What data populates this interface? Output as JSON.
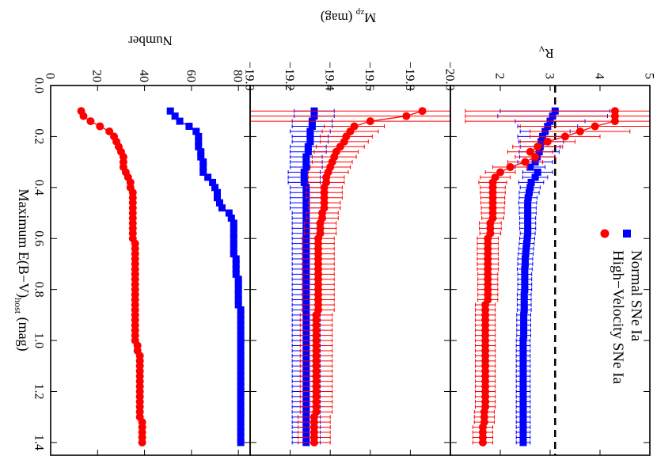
{
  "colors": {
    "normal": "#0000ff",
    "hv": "#ff0000",
    "axis": "#000000"
  },
  "chart_data": [
    {
      "panel": "number",
      "type": "scatter",
      "title": "",
      "xlabel": "Maximum E(B−V)",
      "xlabel_sub": "host",
      "xlabel_unit": " (mag)",
      "ylabel": "Number",
      "xlim": [
        0.0,
        1.45
      ],
      "ylim": [
        0,
        85
      ],
      "x_ticks": [
        "0.0",
        "0.2",
        "0.4",
        "0.6",
        "0.8",
        "1.0",
        "1.2",
        "1.4"
      ],
      "y_ticks": [
        "0",
        "20",
        "40",
        "60",
        "80"
      ],
      "x": [
        0.1,
        0.12,
        0.14,
        0.16,
        0.18,
        0.2,
        0.22,
        0.24,
        0.26,
        0.28,
        0.3,
        0.32,
        0.34,
        0.36,
        0.38,
        0.4,
        0.42,
        0.44,
        0.46,
        0.48,
        0.5,
        0.52,
        0.54,
        0.56,
        0.58,
        0.6,
        0.62,
        0.64,
        0.66,
        0.68,
        0.7,
        0.72,
        0.74,
        0.76,
        0.78,
        0.8,
        0.82,
        0.84,
        0.86,
        0.88,
        0.9,
        0.92,
        0.94,
        0.96,
        0.98,
        1.0,
        1.02,
        1.04,
        1.06,
        1.08,
        1.1,
        1.12,
        1.14,
        1.16,
        1.18,
        1.2,
        1.22,
        1.24,
        1.26,
        1.28,
        1.3,
        1.32,
        1.34,
        1.36,
        1.38,
        1.4
      ],
      "series": [
        {
          "name": "Normal SNe Ia",
          "marker": "square",
          "values": [
            51,
            53,
            55,
            59,
            62,
            63,
            63,
            63,
            64,
            64,
            65,
            65,
            65,
            67,
            69,
            70,
            71,
            71,
            72,
            73,
            76,
            77,
            78,
            78,
            78,
            78,
            78,
            78,
            78,
            79,
            79,
            79,
            79,
            80,
            80,
            80,
            80,
            80,
            80,
            81,
            81,
            81,
            81,
            81,
            81,
            81,
            81,
            81,
            81,
            81,
            81,
            81,
            81,
            81,
            81,
            81,
            81,
            81,
            81,
            81,
            81,
            81,
            81,
            81,
            81,
            81
          ]
        },
        {
          "name": "High−Velocity SNe Ia",
          "marker": "circle",
          "values": [
            13,
            14,
            17,
            21,
            25,
            27,
            28,
            29,
            30,
            31,
            31,
            31,
            32,
            33,
            34,
            34,
            35,
            35,
            35,
            35,
            35,
            35,
            35,
            35,
            35,
            35,
            36,
            36,
            36,
            36,
            36,
            36,
            36,
            36,
            36,
            36,
            36,
            36,
            36,
            36,
            36,
            36,
            36,
            36,
            36,
            36,
            37,
            37,
            38,
            38,
            38,
            38,
            38,
            38,
            38,
            38,
            38,
            38,
            38,
            38,
            38,
            39,
            39,
            39,
            39,
            39
          ]
        }
      ]
    },
    {
      "panel": "mzp",
      "type": "scatter",
      "title": "",
      "xlabel": "",
      "ylabel": "M",
      "ylabel_sub": "zp",
      "ylabel_unit": " (mag)",
      "xlim": [
        0.0,
        1.45
      ],
      "ylim": [
        -19.0,
        -20.0
      ],
      "y_ticks": [
        "−19.0",
        "−19.2",
        "−19.4",
        "−19.6",
        "−19.8",
        "−20.0"
      ],
      "x": [
        0.1,
        0.12,
        0.14,
        0.16,
        0.18,
        0.2,
        0.22,
        0.24,
        0.26,
        0.28,
        0.3,
        0.32,
        0.34,
        0.36,
        0.38,
        0.4,
        0.42,
        0.44,
        0.46,
        0.48,
        0.5,
        0.52,
        0.54,
        0.56,
        0.58,
        0.6,
        0.62,
        0.64,
        0.66,
        0.68,
        0.7,
        0.72,
        0.74,
        0.76,
        0.78,
        0.8,
        0.82,
        0.84,
        0.86,
        0.88,
        0.9,
        0.92,
        0.94,
        0.96,
        0.98,
        1.0,
        1.02,
        1.04,
        1.06,
        1.08,
        1.1,
        1.12,
        1.14,
        1.16,
        1.18,
        1.2,
        1.22,
        1.24,
        1.26,
        1.28,
        1.3,
        1.32,
        1.34,
        1.36,
        1.38,
        1.4
      ],
      "series": [
        {
          "name": "Normal SNe Ia",
          "marker": "square",
          "values": [
            -19.32,
            -19.32,
            -19.31,
            -19.31,
            -19.3,
            -19.3,
            -19.3,
            -19.29,
            -19.29,
            -19.28,
            -19.28,
            -19.28,
            -19.27,
            -19.27,
            -19.27,
            -19.28,
            -19.28,
            -19.28,
            -19.28,
            -19.28,
            -19.28,
            -19.28,
            -19.28,
            -19.28,
            -19.28,
            -19.28,
            -19.28,
            -19.28,
            -19.28,
            -19.28,
            -19.28,
            -19.28,
            -19.28,
            -19.28,
            -19.28,
            -19.28,
            -19.28,
            -19.28,
            -19.28,
            -19.28,
            -19.28,
            -19.28,
            -19.28,
            -19.28,
            -19.28,
            -19.28,
            -19.28,
            -19.28,
            -19.28,
            -19.28,
            -19.28,
            -19.28,
            -19.28,
            -19.28,
            -19.28,
            -19.28,
            -19.28,
            -19.28,
            -19.28,
            -19.28,
            -19.28,
            -19.28,
            -19.28,
            -19.28,
            -19.28,
            -19.28
          ],
          "err": [
            0.1,
            0.1,
            0.1,
            0.1,
            0.1,
            0.09,
            0.09,
            0.09,
            0.09,
            0.08,
            0.08,
            0.08,
            0.08,
            0.08,
            0.08,
            0.08,
            0.08,
            0.08,
            0.08,
            0.08,
            0.07,
            0.07,
            0.07,
            0.07,
            0.07,
            0.07,
            0.07,
            0.07,
            0.07,
            0.07,
            0.07,
            0.07,
            0.07,
            0.07,
            0.07,
            0.07,
            0.07,
            0.07,
            0.07,
            0.07,
            0.07,
            0.07,
            0.07,
            0.07,
            0.07,
            0.07,
            0.07,
            0.07,
            0.07,
            0.07,
            0.07,
            0.07,
            0.07,
            0.07,
            0.07,
            0.07,
            0.07,
            0.07,
            0.07,
            0.07,
            0.07,
            0.07,
            0.07,
            0.07,
            0.07,
            0.07
          ]
        },
        {
          "name": "High−Velocity SNe Ia",
          "marker": "circle",
          "values": [
            -19.86,
            -19.78,
            -19.6,
            -19.52,
            -19.5,
            -19.48,
            -19.47,
            -19.45,
            -19.43,
            -19.42,
            -19.41,
            -19.4,
            -19.39,
            -19.38,
            -19.38,
            -19.37,
            -19.37,
            -19.37,
            -19.37,
            -19.37,
            -19.36,
            -19.36,
            -19.35,
            -19.35,
            -19.35,
            -19.34,
            -19.34,
            -19.34,
            -19.34,
            -19.34,
            -19.34,
            -19.34,
            -19.34,
            -19.34,
            -19.34,
            -19.34,
            -19.34,
            -19.34,
            -19.34,
            -19.34,
            -19.33,
            -19.33,
            -19.33,
            -19.33,
            -19.33,
            -19.33,
            -19.33,
            -19.33,
            -19.33,
            -19.33,
            -19.33,
            -19.33,
            -19.33,
            -19.33,
            -19.33,
            -19.33,
            -19.33,
            -19.33,
            -19.33,
            -19.33,
            -19.32,
            -19.32,
            -19.32,
            -19.32,
            -19.32,
            -19.32
          ],
          "err": [
            1.0,
            1.0,
            1.0,
            0.15,
            0.14,
            0.13,
            0.12,
            0.12,
            0.11,
            0.11,
            0.1,
            0.1,
            0.1,
            0.09,
            0.09,
            0.09,
            0.09,
            0.09,
            0.08,
            0.08,
            0.08,
            0.08,
            0.08,
            0.08,
            0.08,
            0.08,
            0.08,
            0.08,
            0.08,
            0.08,
            0.08,
            0.08,
            0.08,
            0.08,
            0.08,
            0.08,
            0.08,
            0.08,
            0.08,
            0.08,
            0.08,
            0.08,
            0.08,
            0.08,
            0.08,
            0.08,
            0.08,
            0.08,
            0.08,
            0.08,
            0.08,
            0.08,
            0.08,
            0.08,
            0.08,
            0.08,
            0.08,
            0.08,
            0.08,
            0.08,
            0.08,
            0.08,
            0.08,
            0.08,
            0.08,
            0.08
          ]
        }
      ]
    },
    {
      "panel": "rv",
      "type": "scatter",
      "title": "",
      "xlabel": "",
      "ylabel": "R",
      "ylabel_sub": "V",
      "xlim": [
        0.0,
        1.45
      ],
      "ylim": [
        1,
        5
      ],
      "y_ticks": [
        "2",
        "3",
        "4",
        "5"
      ],
      "reference_line": 3.1,
      "x": [
        0.1,
        0.12,
        0.14,
        0.16,
        0.18,
        0.2,
        0.22,
        0.24,
        0.26,
        0.28,
        0.3,
        0.32,
        0.34,
        0.36,
        0.38,
        0.4,
        0.42,
        0.44,
        0.46,
        0.48,
        0.5,
        0.52,
        0.54,
        0.56,
        0.58,
        0.6,
        0.62,
        0.64,
        0.66,
        0.68,
        0.7,
        0.72,
        0.74,
        0.76,
        0.78,
        0.8,
        0.82,
        0.84,
        0.86,
        0.88,
        0.9,
        0.92,
        0.94,
        0.96,
        0.98,
        1.0,
        1.02,
        1.04,
        1.06,
        1.08,
        1.1,
        1.12,
        1.14,
        1.16,
        1.18,
        1.2,
        1.22,
        1.24,
        1.26,
        1.28,
        1.3,
        1.32,
        1.34,
        1.36,
        1.38,
        1.4
      ],
      "series": [
        {
          "name": "Normal SNe Ia",
          "marker": "square",
          "values": [
            3.1,
            3.05,
            3.0,
            2.95,
            2.9,
            2.85,
            2.82,
            2.8,
            2.78,
            2.74,
            2.7,
            2.6,
            2.75,
            2.7,
            2.62,
            2.6,
            2.58,
            2.56,
            2.55,
            2.55,
            2.55,
            2.55,
            2.55,
            2.55,
            2.55,
            2.54,
            2.53,
            2.52,
            2.51,
            2.5,
            2.5,
            2.49,
            2.49,
            2.49,
            2.49,
            2.49,
            2.48,
            2.48,
            2.48,
            2.48,
            2.47,
            2.47,
            2.47,
            2.47,
            2.47,
            2.46,
            2.46,
            2.46,
            2.46,
            2.46,
            2.46,
            2.46,
            2.46,
            2.46,
            2.46,
            2.46,
            2.46,
            2.46,
            2.46,
            2.46,
            2.46,
            2.46,
            2.46,
            2.46,
            2.46,
            2.46
          ],
          "err": [
            1.1,
            1.1,
            0.7,
            0.6,
            0.5,
            0.5,
            0.45,
            0.4,
            0.4,
            0.35,
            0.35,
            0.3,
            0.3,
            0.25,
            0.25,
            0.2,
            0.2,
            0.18,
            0.18,
            0.17,
            0.17,
            0.16,
            0.16,
            0.16,
            0.15,
            0.15,
            0.15,
            0.15,
            0.15,
            0.15,
            0.15,
            0.15,
            0.14,
            0.14,
            0.14,
            0.14,
            0.14,
            0.14,
            0.14,
            0.14,
            0.14,
            0.14,
            0.14,
            0.14,
            0.14,
            0.14,
            0.14,
            0.14,
            0.14,
            0.14,
            0.14,
            0.14,
            0.14,
            0.14,
            0.14,
            0.14,
            0.14,
            0.14,
            0.14,
            0.14,
            0.14,
            0.14,
            0.14,
            0.14,
            0.14,
            0.14
          ]
        },
        {
          "name": "High−Velocity SNe Ia",
          "marker": "circle",
          "values": [
            4.3,
            4.3,
            4.3,
            3.9,
            3.6,
            3.3,
            2.95,
            2.75,
            2.6,
            2.7,
            2.5,
            2.2,
            2.0,
            1.9,
            1.85,
            1.85,
            1.85,
            1.85,
            1.85,
            1.85,
            1.85,
            1.85,
            1.8,
            1.8,
            1.8,
            1.75,
            1.75,
            1.75,
            1.75,
            1.75,
            1.75,
            1.75,
            1.75,
            1.75,
            1.75,
            1.75,
            1.75,
            1.75,
            1.7,
            1.7,
            1.7,
            1.7,
            1.7,
            1.7,
            1.7,
            1.7,
            1.7,
            1.7,
            1.7,
            1.7,
            1.7,
            1.7,
            1.7,
            1.7,
            1.7,
            1.7,
            1.7,
            1.7,
            1.7,
            1.68,
            1.68,
            1.68,
            1.65,
            1.65,
            1.65,
            1.65
          ],
          "err": [
            3.0,
            3.0,
            3.0,
            1.5,
            1.0,
            0.7,
            0.55,
            0.5,
            0.45,
            0.4,
            0.35,
            0.35,
            0.3,
            0.3,
            0.28,
            0.25,
            0.25,
            0.24,
            0.24,
            0.23,
            0.23,
            0.22,
            0.22,
            0.22,
            0.21,
            0.21,
            0.21,
            0.21,
            0.21,
            0.21,
            0.21,
            0.21,
            0.2,
            0.2,
            0.2,
            0.2,
            0.2,
            0.2,
            0.2,
            0.2,
            0.2,
            0.2,
            0.2,
            0.2,
            0.2,
            0.2,
            0.2,
            0.2,
            0.2,
            0.2,
            0.2,
            0.2,
            0.2,
            0.2,
            0.2,
            0.2,
            0.2,
            0.2,
            0.2,
            0.2,
            0.2,
            0.2,
            0.2,
            0.2,
            0.2,
            0.2
          ]
        }
      ],
      "legend": {
        "placement": "top-right",
        "entries": [
          "Normal SNe Ia",
          "High−Velocity SNe Ia"
        ]
      }
    }
  ]
}
